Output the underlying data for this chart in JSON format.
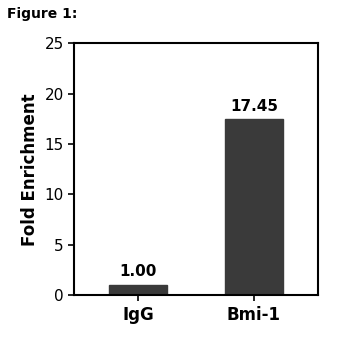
{
  "categories": [
    "IgG",
    "Bmi-1"
  ],
  "values": [
    1.0,
    17.45
  ],
  "bar_color": "#3a3a3a",
  "bar_width": 0.5,
  "ylim": [
    0,
    25
  ],
  "yticks": [
    0,
    5,
    10,
    15,
    20,
    25
  ],
  "ylabel": "Fold Enrichment",
  "ylabel_fontsize": 12,
  "ylabel_fontweight": "bold",
  "xtick_fontsize": 12,
  "xtick_fontweight": "bold",
  "ytick_fontsize": 11,
  "value_labels": [
    "1.00",
    "17.45"
  ],
  "value_label_fontsize": 11,
  "value_label_fontweight": "bold",
  "figure_label": "Figure 1:",
  "figure_label_fontsize": 10,
  "figure_label_fontweight": "bold",
  "background_color": "#ffffff",
  "spine_color": "#000000"
}
